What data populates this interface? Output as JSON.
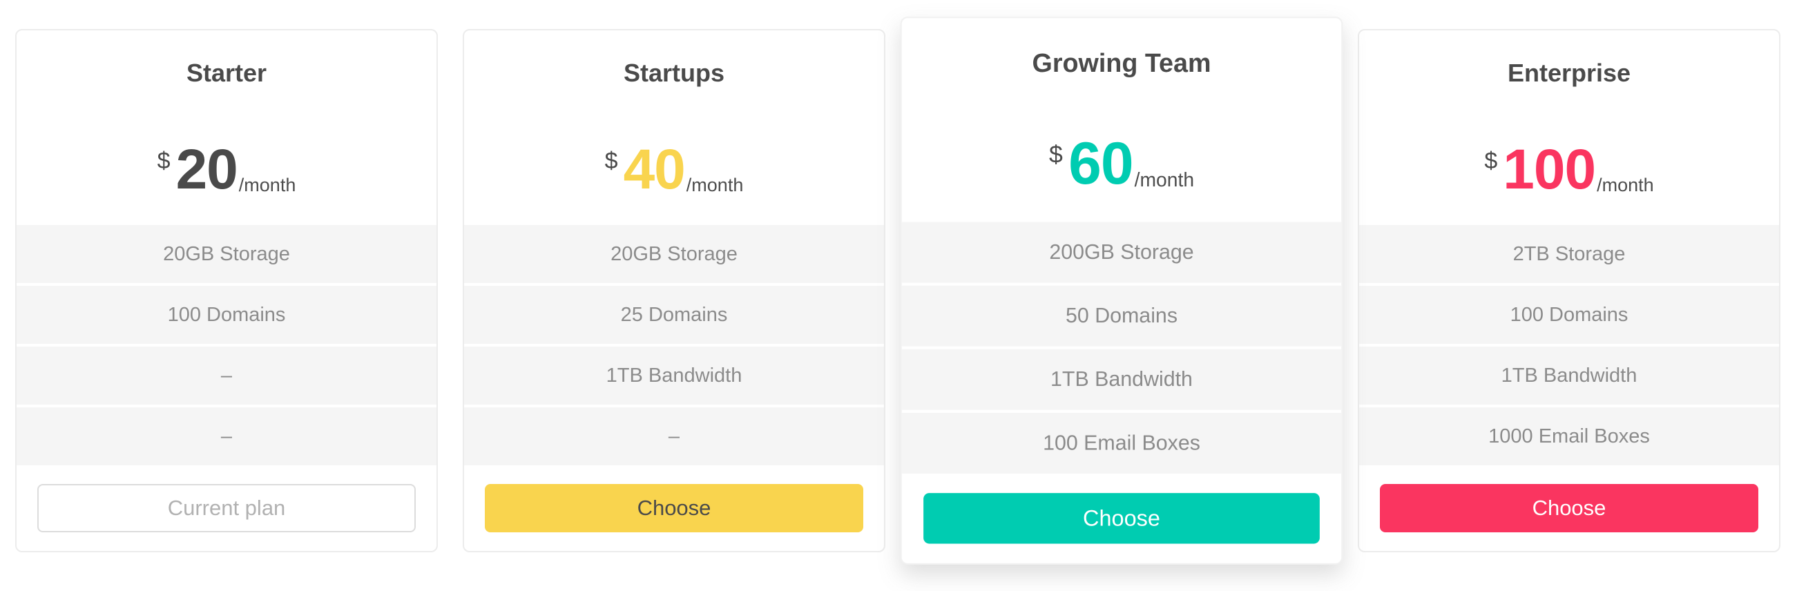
{
  "pricing_table": {
    "card_border_color": "#ececec",
    "row_bg_color": "#f5f5f5",
    "title_color": "#4a4a4a",
    "feature_text_color": "#8b8b8b",
    "plans": [
      {
        "name": "Starter",
        "currency": "$",
        "amount": "20",
        "period": "/month",
        "amount_color": "#4a4a4a",
        "features": [
          "20GB Storage",
          "100 Domains",
          "–",
          "–"
        ],
        "featured": false,
        "button": {
          "label": "Current plan",
          "bg": "#ffffff",
          "text_color": "#b1b1b1",
          "border_color": "#dcdcdc"
        }
      },
      {
        "name": "Startups",
        "currency": "$",
        "amount": "40",
        "period": "/month",
        "amount_color": "#f9d44e",
        "features": [
          "20GB Storage",
          "25 Domains",
          "1TB Bandwidth",
          "–"
        ],
        "featured": false,
        "button": {
          "label": "Choose",
          "bg": "#f9d44e",
          "text_color": "#4a4a4a"
        }
      },
      {
        "name": "Growing Team",
        "currency": "$",
        "amount": "60",
        "period": "/month",
        "amount_color": "#00ccb1",
        "features": [
          "200GB Storage",
          "50 Domains",
          "1TB Bandwidth",
          "100 Email Boxes"
        ],
        "featured": true,
        "button": {
          "label": "Choose",
          "bg": "#00ccb1",
          "text_color": "#ffffff"
        }
      },
      {
        "name": "Enterprise",
        "currency": "$",
        "amount": "100",
        "period": "/month",
        "amount_color": "#fa3560",
        "features": [
          "2TB Storage",
          "100 Domains",
          "1TB Bandwidth",
          "1000 Email Boxes"
        ],
        "featured": false,
        "button": {
          "label": "Choose",
          "bg": "#fa3560",
          "text_color": "#ffffff"
        }
      }
    ]
  }
}
